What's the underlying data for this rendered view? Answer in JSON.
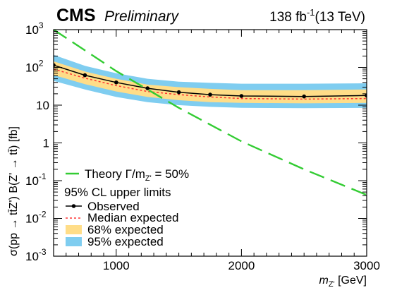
{
  "header": {
    "experiment": "CMS",
    "status": "Preliminary",
    "lumi_value": "138 fb",
    "lumi_exp": "-1",
    "energy": "(13 TeV)"
  },
  "chart_data": {
    "type": "line",
    "xscale": "linear",
    "yscale": "log",
    "xlim": [
      500,
      3000
    ],
    "ylim": [
      0.001,
      1000
    ],
    "xticks": [
      1000,
      2000,
      3000
    ],
    "xtick_labels": [
      "1000",
      "2000",
      "3000"
    ],
    "yticks": [
      0.001,
      0.01,
      0.1,
      1,
      10,
      100,
      1000
    ],
    "ytick_labels": [
      {
        "base": "10",
        "exp": "-3"
      },
      {
        "base": "10",
        "exp": "-2"
      },
      {
        "base": "10",
        "exp": "-1"
      },
      {
        "base": "1",
        "exp": ""
      },
      {
        "base": "10",
        "exp": ""
      },
      {
        "base": "10",
        "exp": "2"
      },
      {
        "base": "10",
        "exp": "3"
      }
    ],
    "xlabel": {
      "main": "m",
      "sub": "Z'",
      "unit": " [GeV]"
    },
    "ylabel": "σ(pp → tt̄Z') B(Z' → tt̄) [fb]",
    "x": [
      500,
      750,
      1000,
      1250,
      1500,
      1750,
      2000,
      2500,
      3000
    ],
    "series": [
      {
        "name": "Theory Γ/m",
        "name_sub": "Z'",
        "name_suffix": " = 50%",
        "style": "dashed",
        "color": "#33cc33",
        "x": [
          500,
          1000,
          1500,
          2000,
          2500,
          3000
        ],
        "values": [
          1000,
          80,
          8.5,
          1.1,
          0.2,
          0.042
        ]
      },
      {
        "name": "Observed",
        "style": "solid-markers",
        "color": "#000000",
        "values": [
          115,
          62,
          40,
          28,
          22,
          19,
          17.5,
          17,
          18
        ]
      },
      {
        "name": "Median expected",
        "style": "dotted",
        "color": "#ff3333",
        "values": [
          90,
          52,
          33,
          23,
          19,
          16.5,
          15,
          14.5,
          15
        ]
      }
    ],
    "bands": [
      {
        "name": "95% expected",
        "color": "#7fcdf0",
        "low": [
          44,
          26,
          16.5,
          12,
          10,
          9,
          8.5,
          8.3,
          8.5
        ],
        "high": [
          215,
          110,
          70,
          50,
          42,
          39,
          37,
          37,
          38
        ]
      },
      {
        "name": "68% expected",
        "color": "#ffdd88",
        "low": [
          63,
          36,
          23,
          16.5,
          13.5,
          12,
          11.5,
          11.2,
          11.5
        ],
        "high": [
          145,
          78,
          50,
          35,
          30,
          27,
          25,
          25,
          26
        ]
      }
    ],
    "legend": {
      "placement": "bottom-left",
      "header": "95% CL upper limits"
    }
  }
}
